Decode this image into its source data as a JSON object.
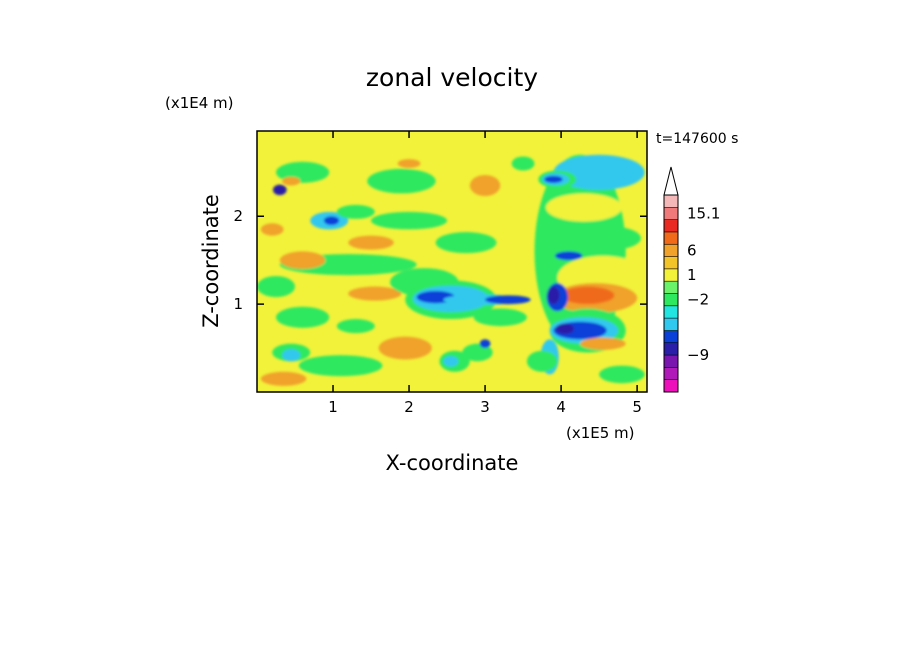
{
  "chart_data": {
    "type": "heatmap",
    "title": "zonal velocity",
    "xlabel": "X-coordinate",
    "ylabel": "Z-coordinate",
    "x_unit": "(x1E5 m)",
    "y_unit": "(x1E4 m)",
    "time_label": "t=147600 s",
    "xlim": [
      0,
      5.13
    ],
    "ylim": [
      0,
      2.97
    ],
    "x_ticks": [
      1,
      2,
      3,
      4,
      5
    ],
    "y_ticks": [
      1,
      2
    ],
    "colorbar": {
      "colors": [
        "#ee11bb",
        "#b01ab8",
        "#7a16b0",
        "#2a1fa8",
        "#0a3fd8",
        "#30c8ee",
        "#22e4e0",
        "#2ee860",
        "#6af26a",
        "#f2f23a",
        "#f2c42a",
        "#f0a22a",
        "#f06a1a",
        "#e82a22",
        "#f07a7a",
        "#f4b8b8"
      ],
      "labels": [
        {
          "value": "15.1",
          "band": 14.5
        },
        {
          "value": "6",
          "band": 11.5
        },
        {
          "value": "1",
          "band": 9.5
        },
        {
          "value": "−2",
          "band": 7.5
        },
        {
          "value": "−9",
          "band": 3.0
        }
      ],
      "extend_max": true
    },
    "blobs": [
      {
        "x": 0.3,
        "z": 2.3,
        "rx": 0.09,
        "rz": 0.06,
        "c": "#2a1fa8"
      },
      {
        "x": 0.95,
        "z": 1.95,
        "rx": 0.25,
        "rz": 0.1,
        "c": "#30c8ee"
      },
      {
        "x": 0.98,
        "z": 1.95,
        "rx": 0.1,
        "rz": 0.05,
        "c": "#0a3fd8"
      },
      {
        "x": 0.2,
        "z": 1.85,
        "rx": 0.15,
        "rz": 0.07,
        "c": "#f0a22a"
      },
      {
        "x": 0.6,
        "z": 2.5,
        "rx": 0.35,
        "rz": 0.12,
        "c": "#2ee860"
      },
      {
        "x": 1.9,
        "z": 2.4,
        "rx": 0.45,
        "rz": 0.14,
        "c": "#2ee860"
      },
      {
        "x": 1.3,
        "z": 2.05,
        "rx": 0.25,
        "rz": 0.08,
        "c": "#2ee860"
      },
      {
        "x": 0.45,
        "z": 2.4,
        "rx": 0.12,
        "rz": 0.05,
        "c": "#f0a22a"
      },
      {
        "x": 2.0,
        "z": 2.6,
        "rx": 0.15,
        "rz": 0.05,
        "c": "#f0a22a"
      },
      {
        "x": 3.0,
        "z": 2.35,
        "rx": 0.2,
        "rz": 0.12,
        "c": "#f0a22a"
      },
      {
        "x": 2.0,
        "z": 1.95,
        "rx": 0.5,
        "rz": 0.1,
        "c": "#2ee860"
      },
      {
        "x": 2.75,
        "z": 1.7,
        "rx": 0.4,
        "rz": 0.12,
        "c": "#2ee860"
      },
      {
        "x": 1.2,
        "z": 1.45,
        "rx": 0.9,
        "rz": 0.12,
        "c": "#2ee860"
      },
      {
        "x": 0.6,
        "z": 1.5,
        "rx": 0.3,
        "rz": 0.1,
        "c": "#f0a22a"
      },
      {
        "x": 1.5,
        "z": 1.7,
        "rx": 0.3,
        "rz": 0.08,
        "c": "#f0a22a"
      },
      {
        "x": 0.25,
        "z": 1.2,
        "rx": 0.25,
        "rz": 0.12,
        "c": "#2ee860"
      },
      {
        "x": 1.55,
        "z": 1.12,
        "rx": 0.35,
        "rz": 0.08,
        "c": "#f0a22a"
      },
      {
        "x": 0.6,
        "z": 0.85,
        "rx": 0.35,
        "rz": 0.12,
        "c": "#2ee860"
      },
      {
        "x": 1.3,
        "z": 0.75,
        "rx": 0.25,
        "rz": 0.08,
        "c": "#2ee860"
      },
      {
        "x": 2.2,
        "z": 1.25,
        "rx": 0.45,
        "rz": 0.16,
        "c": "#2ee860"
      },
      {
        "x": 2.55,
        "z": 1.05,
        "rx": 0.6,
        "rz": 0.22,
        "c": "#2ee860"
      },
      {
        "x": 2.55,
        "z": 1.06,
        "rx": 0.5,
        "rz": 0.15,
        "c": "#30c8ee"
      },
      {
        "x": 2.35,
        "z": 1.08,
        "rx": 0.25,
        "rz": 0.07,
        "c": "#0a3fd8"
      },
      {
        "x": 2.95,
        "z": 1.05,
        "rx": 0.5,
        "rz": 0.06,
        "c": "#30c8ee"
      },
      {
        "x": 3.3,
        "z": 1.05,
        "rx": 0.3,
        "rz": 0.05,
        "c": "#0a3fd8"
      },
      {
        "x": 3.2,
        "z": 0.85,
        "rx": 0.35,
        "rz": 0.1,
        "c": "#2ee860"
      },
      {
        "x": 2.9,
        "z": 0.45,
        "rx": 0.2,
        "rz": 0.1,
        "c": "#2ee860"
      },
      {
        "x": 3.0,
        "z": 0.55,
        "rx": 0.07,
        "rz": 0.05,
        "c": "#0a3fd8"
      },
      {
        "x": 1.95,
        "z": 0.5,
        "rx": 0.35,
        "rz": 0.13,
        "c": "#f0a22a"
      },
      {
        "x": 1.1,
        "z": 0.3,
        "rx": 0.55,
        "rz": 0.12,
        "c": "#2ee860"
      },
      {
        "x": 0.45,
        "z": 0.45,
        "rx": 0.25,
        "rz": 0.1,
        "c": "#2ee860"
      },
      {
        "x": 0.45,
        "z": 0.42,
        "rx": 0.12,
        "rz": 0.07,
        "c": "#30c8ee"
      },
      {
        "x": 2.6,
        "z": 0.35,
        "rx": 0.2,
        "rz": 0.12,
        "c": "#2ee860"
      },
      {
        "x": 2.55,
        "z": 0.35,
        "rx": 0.1,
        "rz": 0.06,
        "c": "#30c8ee"
      },
      {
        "x": 0.35,
        "z": 0.15,
        "rx": 0.3,
        "rz": 0.08,
        "c": "#f0a22a"
      },
      {
        "x": 4.25,
        "z": 1.6,
        "rx": 0.6,
        "rz": 1.1,
        "c": "#2ee860"
      },
      {
        "x": 4.5,
        "z": 2.5,
        "rx": 0.6,
        "rz": 0.2,
        "c": "#30c8ee"
      },
      {
        "x": 3.95,
        "z": 2.42,
        "rx": 0.25,
        "rz": 0.1,
        "c": "#2ee860"
      },
      {
        "x": 3.93,
        "z": 2.42,
        "rx": 0.18,
        "rz": 0.07,
        "c": "#30c8ee"
      },
      {
        "x": 3.9,
        "z": 2.42,
        "rx": 0.12,
        "rz": 0.04,
        "c": "#0a3fd8"
      },
      {
        "x": 4.3,
        "z": 2.1,
        "rx": 0.5,
        "rz": 0.16,
        "c": "#f2f23a"
      },
      {
        "x": 4.6,
        "z": 1.75,
        "rx": 0.45,
        "rz": 0.14,
        "c": "#2ee860"
      },
      {
        "x": 4.55,
        "z": 1.3,
        "rx": 0.6,
        "rz": 0.25,
        "c": "#f2f23a"
      },
      {
        "x": 4.45,
        "z": 1.07,
        "rx": 0.55,
        "rz": 0.17,
        "c": "#f0a22a"
      },
      {
        "x": 4.35,
        "z": 1.1,
        "rx": 0.35,
        "rz": 0.1,
        "c": "#f06a1a"
      },
      {
        "x": 3.95,
        "z": 1.08,
        "rx": 0.14,
        "rz": 0.16,
        "c": "#0a3fd8"
      },
      {
        "x": 3.9,
        "z": 1.1,
        "rx": 0.08,
        "rz": 0.1,
        "c": "#2a1fa8"
      },
      {
        "x": 4.35,
        "z": 0.7,
        "rx": 0.5,
        "rz": 0.25,
        "c": "#2ee860"
      },
      {
        "x": 4.3,
        "z": 0.7,
        "rx": 0.45,
        "rz": 0.15,
        "c": "#30c8ee"
      },
      {
        "x": 4.25,
        "z": 0.7,
        "rx": 0.35,
        "rz": 0.1,
        "c": "#0a3fd8"
      },
      {
        "x": 4.05,
        "z": 0.72,
        "rx": 0.12,
        "rz": 0.06,
        "c": "#2a1fa8"
      },
      {
        "x": 4.55,
        "z": 0.55,
        "rx": 0.3,
        "rz": 0.07,
        "c": "#f0a22a"
      },
      {
        "x": 3.85,
        "z": 0.4,
        "rx": 0.12,
        "rz": 0.2,
        "c": "#30c8ee"
      },
      {
        "x": 3.75,
        "z": 0.35,
        "rx": 0.2,
        "rz": 0.12,
        "c": "#2ee860"
      },
      {
        "x": 4.8,
        "z": 0.2,
        "rx": 0.3,
        "rz": 0.1,
        "c": "#2ee860"
      },
      {
        "x": 4.1,
        "z": 1.55,
        "rx": 0.18,
        "rz": 0.05,
        "c": "#0a3fd8"
      },
      {
        "x": 3.5,
        "z": 2.6,
        "rx": 0.15,
        "rz": 0.08,
        "c": "#2ee860"
      }
    ]
  }
}
